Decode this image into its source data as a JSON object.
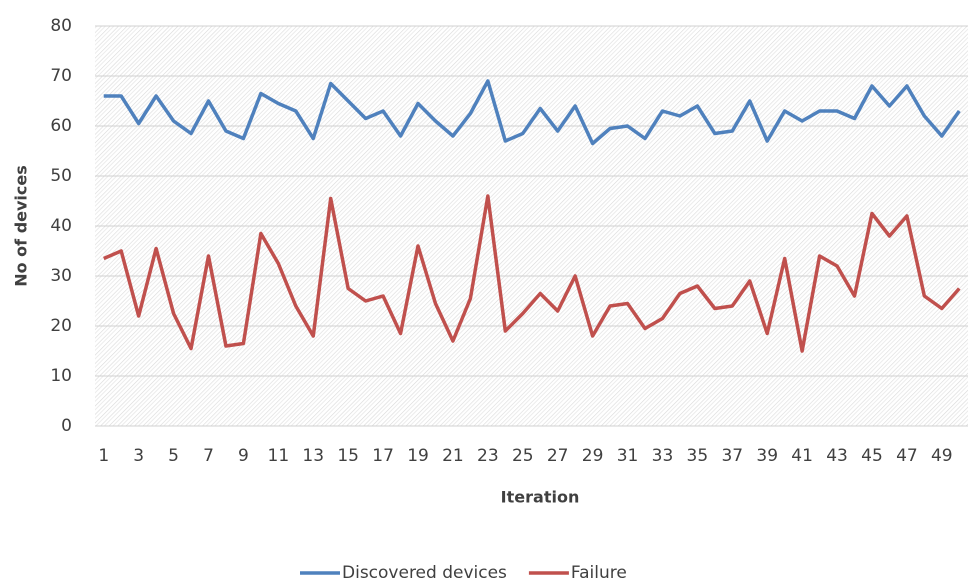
{
  "chart_data": {
    "type": "line",
    "x_label": "Iteration",
    "y_label": "No of devices",
    "categories": [
      "1",
      null,
      "3",
      null,
      "5",
      null,
      "7",
      null,
      "9",
      null,
      "11",
      null,
      "13",
      null,
      "15",
      null,
      "17",
      null,
      "19",
      null,
      "21",
      null,
      "23",
      null,
      "25",
      null,
      "27",
      null,
      "29",
      null,
      "31",
      null,
      "33",
      null,
      "35",
      null,
      "37",
      null,
      "39",
      null,
      "41",
      null,
      "43",
      null,
      "45",
      null,
      "47",
      null,
      "49",
      null
    ],
    "series": [
      {
        "name": "Discovered devices",
        "color": "#4f81bd",
        "values": [
          66,
          66,
          60.5,
          66,
          61,
          58.5,
          65,
          59,
          57.5,
          66.5,
          64.5,
          63,
          57.5,
          68.5,
          65,
          61.5,
          63,
          58,
          64.5,
          61,
          58,
          62.5,
          69,
          57,
          58.5,
          63.5,
          59,
          64,
          56.5,
          59.5,
          60,
          57.5,
          63,
          62,
          64,
          58.5,
          59,
          65,
          57,
          63,
          61,
          63,
          63,
          61.5,
          68,
          64,
          68,
          62,
          58,
          63
        ]
      },
      {
        "name": "Failure",
        "color": "#c0504d",
        "values": [
          33.5,
          35,
          22,
          35.5,
          22.5,
          15.5,
          34,
          16,
          16.5,
          38.5,
          32.5,
          24,
          18,
          45.5,
          27.5,
          25,
          26,
          18.5,
          36,
          24.5,
          17,
          25.5,
          46,
          19,
          22.5,
          26.5,
          23,
          30,
          18,
          24,
          24.5,
          19.5,
          21.5,
          26.5,
          28,
          23.5,
          24,
          29,
          18.5,
          33.5,
          15,
          34,
          32,
          26,
          42.5,
          38,
          42,
          26,
          23.5,
          27.5
        ]
      }
    ],
    "ylim": [
      0,
      80
    ],
    "yticks": [
      0,
      10,
      20,
      30,
      40,
      50,
      60,
      70,
      80
    ],
    "grid": true,
    "legend": "bottom"
  }
}
